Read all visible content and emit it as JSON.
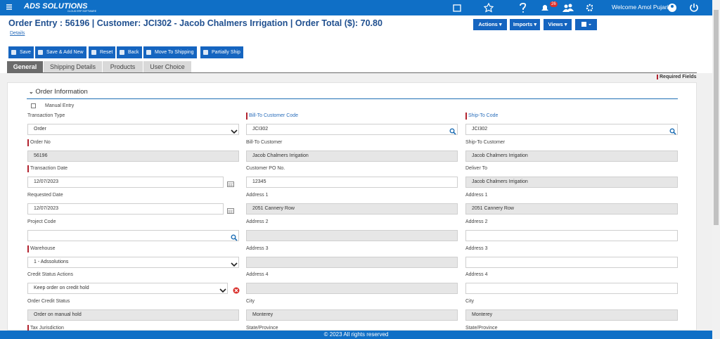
{
  "top_bar": {
    "logo": "ADS SOLUTIONS",
    "logo_tagline": "CLOUD ERP SOFTWARE",
    "notification_count": 26,
    "welcome": "Welcome Amol Pujari"
  },
  "header": {
    "title": "Order Entry : 56196 | Customer: JCI302 - Jacob Chalmers Irrigation | Order Total ($): 70.80",
    "details_link": "Details",
    "menus": [
      "Actions",
      "Imports",
      "Views"
    ]
  },
  "toolbar": [
    "Save",
    "Save & Add New",
    "Reset",
    "Back",
    "Move To Shipping",
    "Partially Ship"
  ],
  "tabs": {
    "items": [
      "General",
      "Shipping Details",
      "Products",
      "User Choice"
    ],
    "active": 0
  },
  "required_fields": "Required Fields",
  "section": {
    "title": "Order Information",
    "manual_entry": "Manual Entry"
  },
  "form": {
    "columns": [
      [
        {
          "label": "Transaction Type",
          "value": "Order",
          "kind": "select"
        },
        {
          "label": "Order No",
          "value": "56196",
          "kind": "readonly",
          "required": true
        },
        {
          "label": "Transaction Date",
          "value": "12/07/2023",
          "kind": "date",
          "required": true
        },
        {
          "label": "Requested Date",
          "value": "12/07/2023",
          "kind": "date"
        },
        {
          "label": "Project Code",
          "kind": "search"
        },
        {
          "label": "Warehouse",
          "value": "1 - Adssolutions",
          "kind": "select",
          "required": true
        },
        {
          "label": "Credit Status Actions",
          "value": "Keep order on credit hold",
          "kind": "select",
          "alert": true
        },
        {
          "label": "Order Credit Status",
          "value": "Order on manual hold",
          "kind": "readonly"
        },
        {
          "label": "Tax Jurisdiction",
          "required": true
        }
      ],
      [
        {
          "label": "Bill-To Customer Code",
          "value": "JCI302",
          "kind": "search",
          "required": true,
          "link": true
        },
        {
          "label": "Bill-To Customer",
          "value": "Jacob Chalmers Irrigation",
          "kind": "readonly"
        },
        {
          "label": "Customer PO No.",
          "value": "12345",
          "kind": "text"
        },
        {
          "label": "Address 1",
          "value": "2051 Cannery Row",
          "kind": "readonly"
        },
        {
          "label": "Address 2",
          "kind": "readonly"
        },
        {
          "label": "Address 3",
          "kind": "readonly"
        },
        {
          "label": "Address 4",
          "kind": "readonly"
        },
        {
          "label": "City",
          "value": "Monterey",
          "kind": "readonly"
        },
        {
          "label": "State/Province"
        }
      ],
      [
        {
          "label": "Ship-To Code",
          "value": "JCI302",
          "kind": "search",
          "required": true,
          "link": true
        },
        {
          "label": "Ship-To Customer",
          "value": "Jacob Chalmers Irrigation",
          "kind": "readonly"
        },
        {
          "label": "Deliver To",
          "value": "Jacob Chalmers Irrigation",
          "kind": "readonly"
        },
        {
          "label": "Address 1",
          "value": "2051 Cannery Row",
          "kind": "readonly"
        },
        {
          "label": "Address 2",
          "kind": "text"
        },
        {
          "label": "Address 3",
          "kind": "text"
        },
        {
          "label": "Address 4",
          "kind": "text"
        },
        {
          "label": "City",
          "value": "Monterey",
          "kind": "readonly"
        },
        {
          "label": "State/Province"
        }
      ]
    ]
  },
  "footer": "© 2023 All rights reserved"
}
